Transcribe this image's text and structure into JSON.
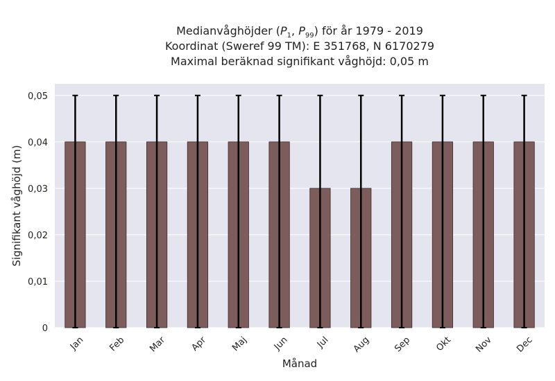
{
  "chart_data": {
    "type": "bar",
    "title_lines": [
      {
        "prefix": "Medianvåghöjder (",
        "p1": "P",
        "p1_sub": "1",
        "sep": ", ",
        "p2": "P",
        "p2_sub": "99",
        "suffix": ") för år 1979 - 2019"
      },
      "Koordinat (Sweref 99 TM): E 351768, N 6170279",
      "Maximal beräknad signifikant våghöjd: 0,05 m"
    ],
    "xlabel": "Månad",
    "ylabel": "Signifikant våghöjd (m)",
    "categories": [
      "Jan",
      "Feb",
      "Mar",
      "Apr",
      "Maj",
      "Jun",
      "Jul",
      "Aug",
      "Sep",
      "Okt",
      "Nov",
      "Dec"
    ],
    "values": [
      0.04,
      0.04,
      0.04,
      0.04,
      0.04,
      0.04,
      0.03,
      0.03,
      0.04,
      0.04,
      0.04,
      0.04
    ],
    "error_low": [
      0,
      0,
      0,
      0,
      0,
      0,
      0,
      0,
      0,
      0,
      0,
      0
    ],
    "error_high": [
      0.05,
      0.05,
      0.05,
      0.05,
      0.05,
      0.05,
      0.05,
      0.05,
      0.05,
      0.05,
      0.05,
      0.05
    ],
    "yticks": [
      0,
      0.01,
      0.02,
      0.03,
      0.04,
      0.05
    ],
    "ytick_labels": [
      "0",
      "0,01",
      "0,02",
      "0,03",
      "0,04",
      "0,05"
    ],
    "ylim": [
      0,
      0.0525
    ],
    "grid": true,
    "colors": {
      "bar": "#7d5c5c",
      "bar_edge": "#3a2a2a",
      "plot_bg": "#e5e5f0",
      "grid": "#ffffff",
      "error": "#000000"
    }
  }
}
